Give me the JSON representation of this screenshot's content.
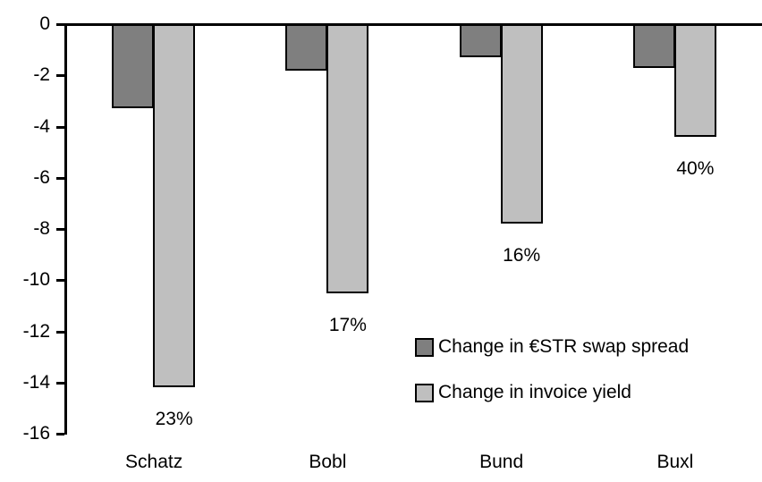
{
  "chart_data": {
    "type": "bar",
    "title": "",
    "xlabel": "",
    "ylabel": "",
    "categories": [
      "Schatz",
      "Bobl",
      "Bund",
      "Buxl"
    ],
    "series": [
      {
        "name": "Change in €STR swap spread",
        "color": "#7F7F7F",
        "values": [
          -3.3,
          -1.8,
          -1.3,
          -1.7
        ]
      },
      {
        "name": "Change in invoice yield",
        "color": "#BFBFBF",
        "values": [
          -14.2,
          -10.5,
          -7.8,
          -4.4
        ]
      }
    ],
    "bar_labels": {
      "attached_to_series": "Change in invoice yield",
      "values": [
        "23%",
        "17%",
        "16%",
        "40%"
      ]
    },
    "ylim": [
      -16,
      0
    ],
    "yticks": [
      0,
      -2,
      -4,
      -6,
      -8,
      -10,
      -12,
      -14,
      -16
    ],
    "grid": false,
    "legend_position": "inside-right-middle",
    "bar_border_color": "#000000",
    "axis_color": "#000000",
    "text_color": "#000000",
    "background": "#FFFFFF"
  }
}
